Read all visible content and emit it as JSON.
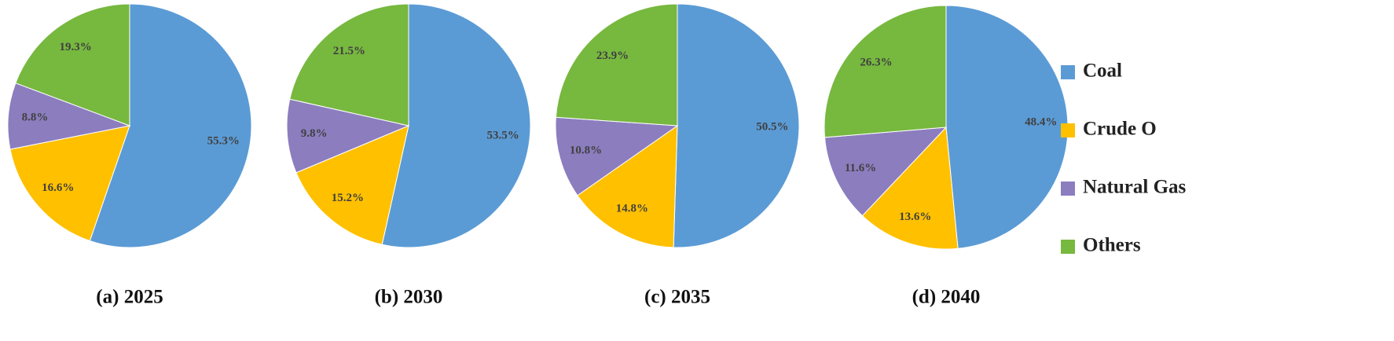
{
  "chart_data": [
    {
      "type": "pie",
      "title": "(a) 2025",
      "categories": [
        "Coal",
        "Crude O",
        "Natural Gas",
        "Others"
      ],
      "values": [
        55.3,
        16.6,
        8.8,
        19.3
      ],
      "value_labels": [
        "55.3%",
        "16.6%",
        "8.8%",
        "19.3%"
      ],
      "colors": [
        "#5b9bd5",
        "#ffc000",
        "#8c7dbf",
        "#77b83f"
      ]
    },
    {
      "type": "pie",
      "title": "(b) 2030",
      "categories": [
        "Coal",
        "Crude O",
        "Natural Gas",
        "Others"
      ],
      "values": [
        53.5,
        15.2,
        9.8,
        21.5
      ],
      "value_labels": [
        "53.5%",
        "15.2%",
        "9.8%",
        "21.5%"
      ],
      "colors": [
        "#5b9bd5",
        "#ffc000",
        "#8c7dbf",
        "#77b83f"
      ]
    },
    {
      "type": "pie",
      "title": "(c) 2035",
      "categories": [
        "Coal",
        "Crude O",
        "Natural Gas",
        "Others"
      ],
      "values": [
        50.5,
        14.8,
        10.8,
        23.9
      ],
      "value_labels": [
        "50.5%",
        "14.8%",
        "10.8%",
        "23.9%"
      ],
      "colors": [
        "#5b9bd5",
        "#ffc000",
        "#8c7dbf",
        "#77b83f"
      ]
    },
    {
      "type": "pie",
      "title": "(d) 2040",
      "categories": [
        "Coal",
        "Crude O",
        "Natural Gas",
        "Others"
      ],
      "values": [
        48.4,
        13.6,
        11.6,
        26.3
      ],
      "value_labels": [
        "48.4%",
        "13.6%",
        "11.6%",
        "26.3%"
      ],
      "colors": [
        "#5b9bd5",
        "#ffc000",
        "#8c7dbf",
        "#77b83f"
      ]
    }
  ]
}
